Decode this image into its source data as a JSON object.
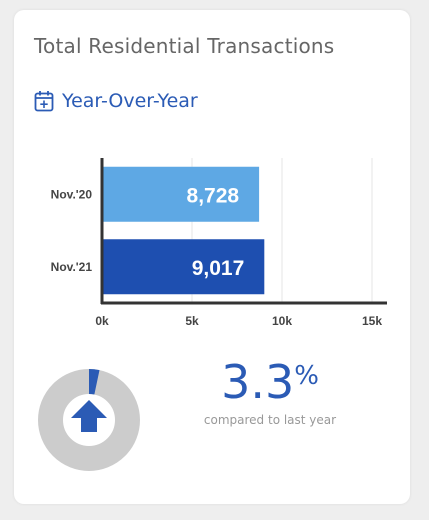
{
  "card": {
    "title": "Total Residential Transactions",
    "period_label": "Year-Over-Year",
    "period_icon": "calendar-plus-icon"
  },
  "chart_data": {
    "type": "bar",
    "orientation": "horizontal",
    "categories": [
      "Nov.'20",
      "Nov.'21"
    ],
    "values": [
      8728,
      9017
    ],
    "value_labels": [
      "8,728",
      "9,017"
    ],
    "xlim": [
      0,
      15000
    ],
    "x_ticks": [
      0,
      5000,
      10000,
      15000
    ],
    "x_tick_labels": [
      "0k",
      "5k",
      "10k",
      "15k"
    ],
    "grid": true,
    "colors": [
      "#5ea8e4",
      "#1e4fb0"
    ]
  },
  "kpi": {
    "value": "3.3",
    "unit": "%",
    "caption": "compared to last year",
    "change_fraction": 0.033,
    "direction": "up",
    "arrow_icon": "arrow-up-icon",
    "accent_color": "#2b5bb5",
    "track_color": "#cccccc"
  }
}
